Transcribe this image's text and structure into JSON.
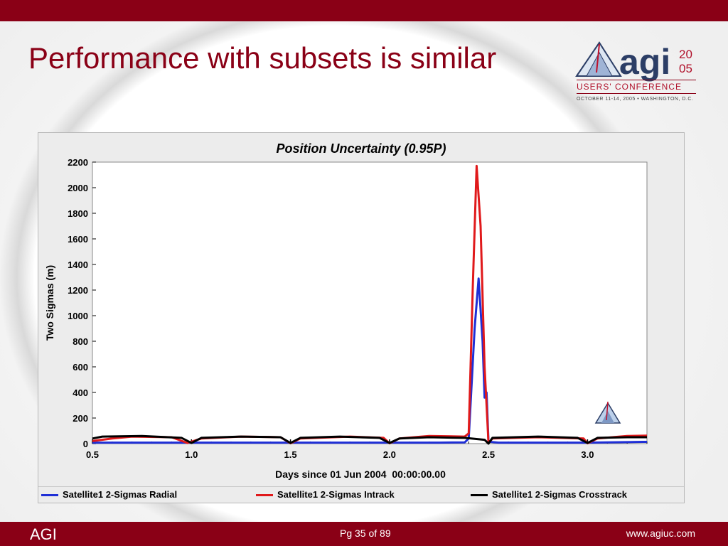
{
  "slide": {
    "title": "Performance with subsets is similar",
    "footer_left": "AGI",
    "footer_page": "Pg 35 of 89",
    "footer_url": "www.agiuc.com",
    "accent_color": "#8a0016"
  },
  "logo": {
    "main": "agi",
    "year_top": "20",
    "year_bottom": "05",
    "subtitle": "USERS' CONFERENCE",
    "date_line": "OCTOBER 11-14, 2005 • WASHINGTON, D.C."
  },
  "chart_data": {
    "type": "line",
    "title": "Position Uncertainty (0.95P)",
    "xlabel": "Days since 01 Jun 2004  00:00:00.00",
    "ylabel": "Two Sigmas (m)",
    "xlim": [
      0.5,
      3.3
    ],
    "ylim": [
      0,
      2200
    ],
    "x_ticks": [
      "0.5",
      "1.0",
      "1.5",
      "2.0",
      "2.5",
      "3.0"
    ],
    "y_ticks": [
      "0",
      "200",
      "400",
      "600",
      "800",
      "1000",
      "1200",
      "1400",
      "1600",
      "1800",
      "2000",
      "2200"
    ],
    "grid": false,
    "legend_position": "bottom",
    "series": [
      {
        "name": "Satellite1 2-Sigmas Radial",
        "color": "#1f2fd6",
        "points": [
          [
            0.5,
            8
          ],
          [
            0.75,
            8
          ],
          [
            1.0,
            8
          ],
          [
            1.25,
            8
          ],
          [
            1.5,
            8
          ],
          [
            1.75,
            8
          ],
          [
            2.0,
            8
          ],
          [
            2.25,
            8
          ],
          [
            2.38,
            10
          ],
          [
            2.4,
            40
          ],
          [
            2.43,
            900
          ],
          [
            2.45,
            1290
          ],
          [
            2.47,
            800
          ],
          [
            2.48,
            360
          ],
          [
            2.49,
            400
          ],
          [
            2.5,
            15
          ],
          [
            2.55,
            8
          ],
          [
            3.0,
            8
          ],
          [
            3.28,
            14
          ],
          [
            3.3,
            14
          ]
        ]
      },
      {
        "name": "Satellite1 2-Sigmas Intrack",
        "color": "#e0191b",
        "points": [
          [
            0.5,
            20
          ],
          [
            0.6,
            40
          ],
          [
            0.7,
            55
          ],
          [
            0.9,
            50
          ],
          [
            0.98,
            5
          ],
          [
            1.05,
            40
          ],
          [
            1.25,
            55
          ],
          [
            1.45,
            50
          ],
          [
            1.5,
            3
          ],
          [
            1.55,
            40
          ],
          [
            1.8,
            55
          ],
          [
            1.97,
            45
          ],
          [
            2.0,
            3
          ],
          [
            2.05,
            40
          ],
          [
            2.2,
            60
          ],
          [
            2.38,
            55
          ],
          [
            2.4,
            80
          ],
          [
            2.42,
            1200
          ],
          [
            2.44,
            2170
          ],
          [
            2.46,
            1700
          ],
          [
            2.48,
            600
          ],
          [
            2.49,
            300
          ],
          [
            2.5,
            5
          ],
          [
            2.52,
            40
          ],
          [
            2.75,
            50
          ],
          [
            2.98,
            40
          ],
          [
            3.0,
            3
          ],
          [
            3.05,
            40
          ],
          [
            3.2,
            60
          ],
          [
            3.3,
            62
          ]
        ]
      },
      {
        "name": "Satellite1 2-Sigmas Crosstrack",
        "color": "#000000",
        "points": [
          [
            0.5,
            40
          ],
          [
            0.55,
            55
          ],
          [
            0.75,
            60
          ],
          [
            0.95,
            45
          ],
          [
            1.0,
            5
          ],
          [
            1.05,
            45
          ],
          [
            1.25,
            55
          ],
          [
            1.45,
            50
          ],
          [
            1.5,
            5
          ],
          [
            1.55,
            45
          ],
          [
            1.75,
            55
          ],
          [
            1.95,
            45
          ],
          [
            2.0,
            5
          ],
          [
            2.05,
            40
          ],
          [
            2.2,
            50
          ],
          [
            2.38,
            45
          ],
          [
            2.48,
            30
          ],
          [
            2.5,
            0
          ],
          [
            2.52,
            45
          ],
          [
            2.75,
            55
          ],
          [
            2.95,
            45
          ],
          [
            3.0,
            5
          ],
          [
            3.05,
            45
          ],
          [
            3.2,
            50
          ],
          [
            3.3,
            50
          ]
        ]
      }
    ]
  }
}
